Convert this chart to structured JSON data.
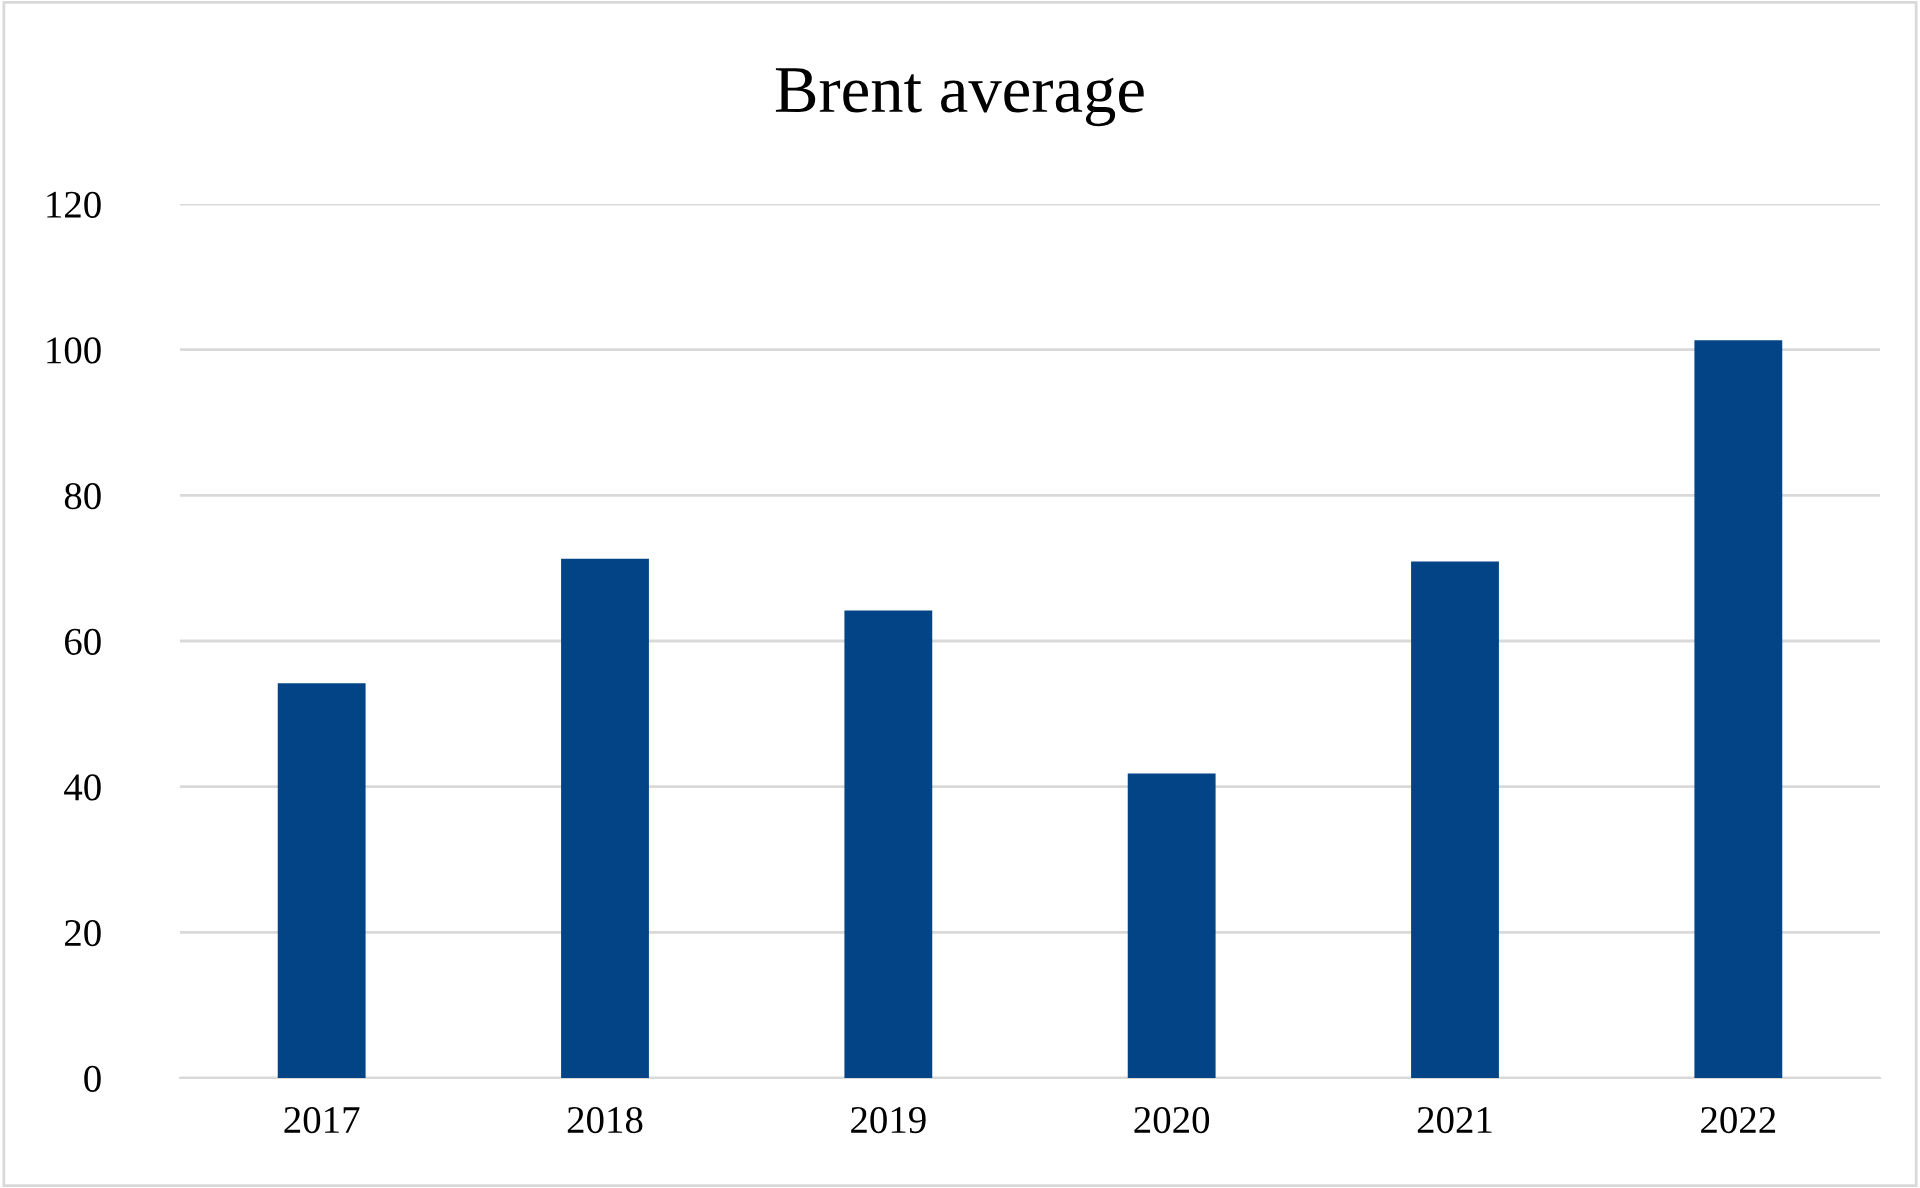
{
  "chart_data": {
    "type": "bar",
    "title": "Brent average",
    "categories": [
      "2017",
      "2018",
      "2019",
      "2020",
      "2021",
      "2022"
    ],
    "values": [
      54.2,
      71.3,
      64.2,
      41.8,
      70.9,
      101.3
    ],
    "color": "#024485",
    "ylim": [
      0,
      120
    ],
    "yticks": [
      0,
      20,
      40,
      60,
      80,
      100,
      120
    ],
    "grid": "y",
    "legend": false
  }
}
